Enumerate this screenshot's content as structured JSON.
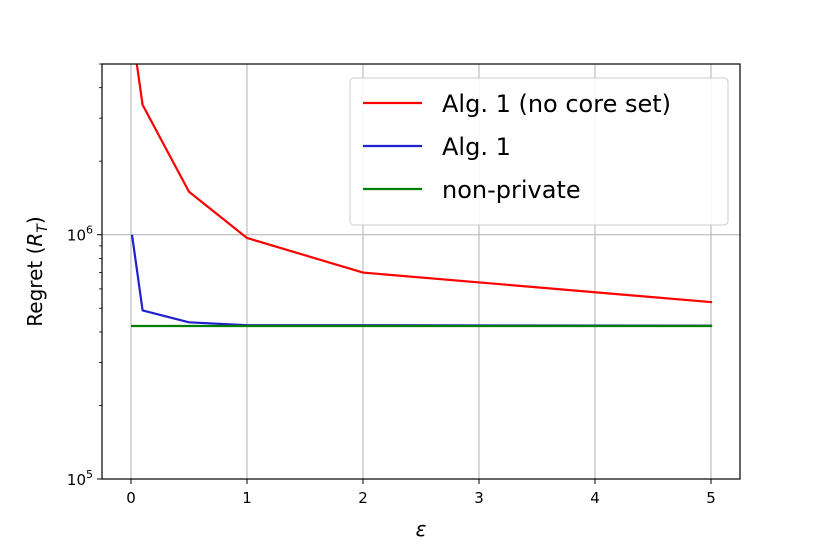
{
  "chart_data": {
    "type": "line",
    "title": "",
    "xlabel": "ε",
    "ylabel": "Regret (R_T)",
    "ylabel_main": "Regret (",
    "ylabel_var": "R",
    "ylabel_sub": "T",
    "ylabel_close": ")",
    "yscale": "log",
    "xlim": [
      -0.25,
      5.25
    ],
    "ylim": [
      100000,
      5000000
    ],
    "grid": true,
    "legend_position": "upper right",
    "x_ticks": [
      0,
      1,
      2,
      3,
      4,
      5
    ],
    "x_tick_labels": [
      "0",
      "1",
      "2",
      "3",
      "4",
      "5"
    ],
    "y_ticks": [
      {
        "value": 100000,
        "base": "10",
        "exp": "5"
      },
      {
        "value": 1000000,
        "base": "10",
        "exp": "6"
      }
    ],
    "series": [
      {
        "name": "Alg. 1 (no core set)",
        "color": "#ff0000",
        "x": [
          0.01,
          0.05,
          0.1,
          0.5,
          1,
          2,
          5
        ],
        "y": [
          8000000,
          5000000,
          3400000,
          1500000,
          970000,
          700000,
          530000
        ]
      },
      {
        "name": "Alg. 1",
        "color": "#2020cc",
        "x": [
          0.01,
          0.1,
          0.5,
          1,
          2,
          5
        ],
        "y": [
          990000,
          490000,
          438000,
          426000,
          426000,
          424000
        ]
      },
      {
        "name": "non-private",
        "color": "#008000",
        "x": [
          0.01,
          5
        ],
        "y": [
          423000,
          423000
        ]
      }
    ]
  }
}
